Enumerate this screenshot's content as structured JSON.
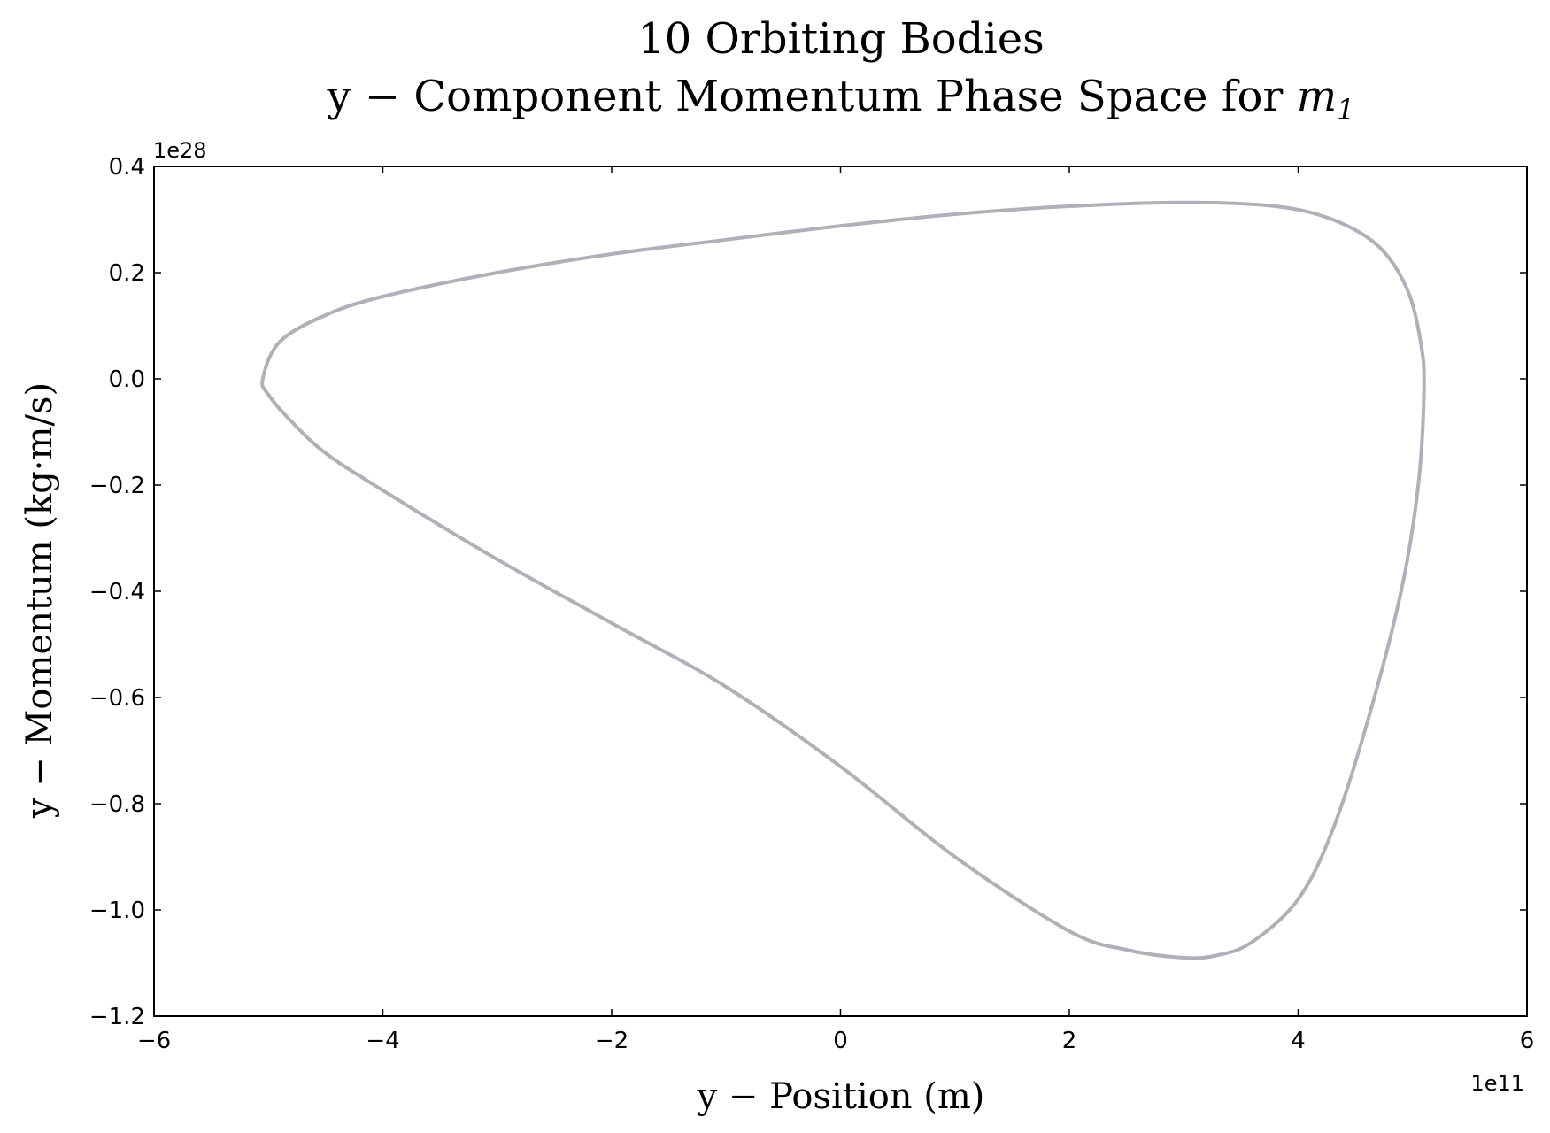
{
  "chart_data": {
    "type": "line",
    "title_line1": "10 Orbiting Bodies",
    "title_line2_prefix": "y − Component Momentum Phase Space for ",
    "title_line2_var": "m",
    "title_line2_sub": "1",
    "xlabel": "y − Position (m)",
    "ylabel": "y − Momentum (kg·m/s)",
    "x_offset_label": "1e11",
    "y_offset_label": "1e28",
    "xlim": [
      -6,
      6
    ],
    "ylim": [
      -1.2,
      0.4
    ],
    "x_ticks": [
      -6,
      -4,
      -2,
      0,
      2,
      4,
      6
    ],
    "y_ticks": [
      -1.2,
      -1.0,
      -0.8,
      -0.6,
      -0.4,
      -0.2,
      0.0,
      0.2,
      0.4
    ],
    "x_tick_labels": [
      "−6",
      "−4",
      "−2",
      "0",
      "2",
      "4",
      "6"
    ],
    "y_tick_labels": [
      "−1.2",
      "−1.0",
      "−0.8",
      "−0.6",
      "−0.4",
      "−0.2",
      "0.0",
      "0.2",
      "0.4"
    ],
    "grid": false,
    "line_color": "#b0b0b8",
    "series": [
      {
        "x": [
          -5.05,
          -4.9,
          -4.5,
          -4.0,
          -3.0,
          -2.0,
          -1.0,
          0.0,
          1.0,
          2.0,
          3.0,
          3.8,
          4.3,
          4.7,
          4.95,
          5.07,
          5.1,
          5.05,
          4.9,
          4.6,
          4.3,
          4.0,
          3.6,
          3.3,
          3.0,
          2.5,
          2.0,
          1.0,
          0.0,
          -1.0,
          -2.0,
          -3.0,
          -4.0,
          -4.5,
          -4.8,
          -5.0,
          -5.05
        ],
        "y": [
          0.0,
          0.07,
          0.12,
          0.155,
          0.2,
          0.235,
          0.262,
          0.288,
          0.31,
          0.325,
          0.332,
          0.325,
          0.3,
          0.25,
          0.17,
          0.07,
          -0.02,
          -0.2,
          -0.4,
          -0.65,
          -0.85,
          -0.98,
          -1.06,
          -1.085,
          -1.09,
          -1.075,
          -1.04,
          -0.9,
          -0.73,
          -0.58,
          -0.46,
          -0.34,
          -0.21,
          -0.14,
          -0.08,
          -0.03,
          0.0
        ]
      }
    ]
  }
}
